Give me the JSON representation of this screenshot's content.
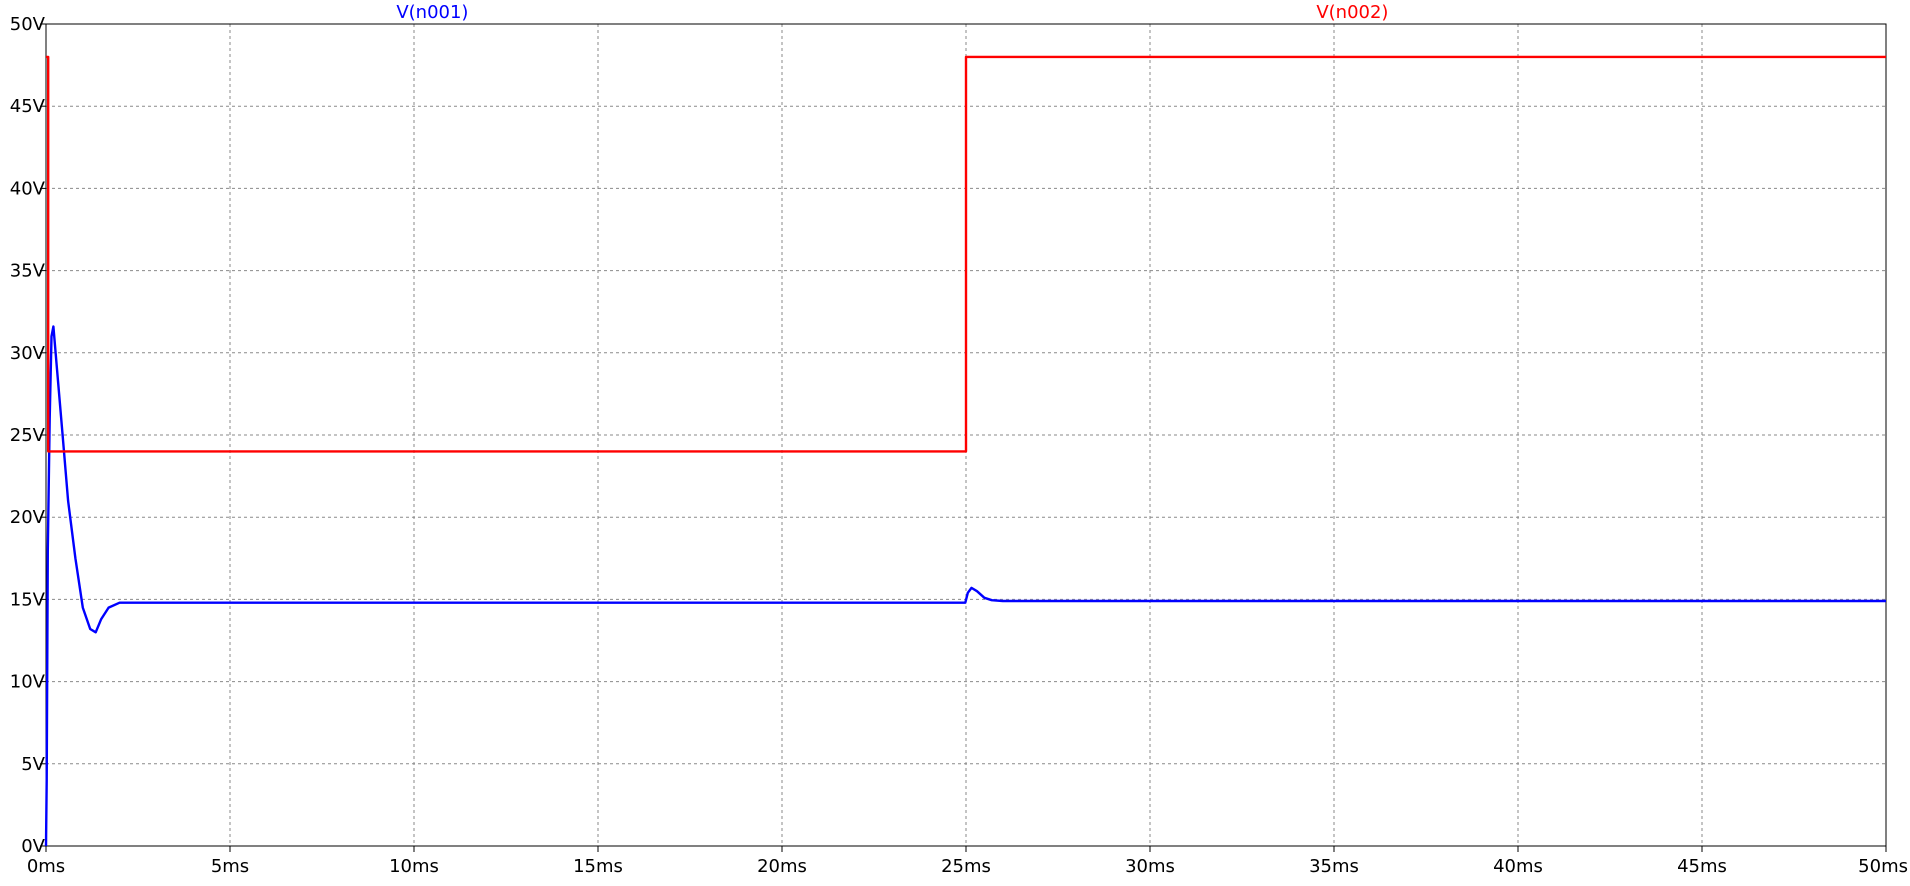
{
  "chart_data": {
    "type": "line",
    "title": "",
    "xlabel": "",
    "ylabel": "",
    "xlim": [
      0,
      50
    ],
    "ylim": [
      0,
      50
    ],
    "grid": true,
    "x_ticks": [
      0,
      5,
      10,
      15,
      20,
      25,
      30,
      35,
      40,
      45,
      50
    ],
    "x_tick_labels": [
      "0ms",
      "5ms",
      "10ms",
      "15ms",
      "20ms",
      "25ms",
      "30ms",
      "35ms",
      "40ms",
      "45ms",
      "50ms"
    ],
    "y_ticks": [
      0,
      5,
      10,
      15,
      20,
      25,
      30,
      35,
      40,
      45,
      50
    ],
    "y_tick_labels": [
      "0V",
      "5V",
      "10V",
      "15V",
      "20V",
      "25V",
      "30V",
      "35V",
      "40V",
      "45V",
      "50V"
    ],
    "series": [
      {
        "name": "V(n001)",
        "color": "#0000ff",
        "x": [
          0,
          0.02,
          0.05,
          0.1,
          0.15,
          0.2,
          0.3,
          0.45,
          0.6,
          0.8,
          1.0,
          1.2,
          1.35,
          1.5,
          1.7,
          2.0,
          2.5,
          5,
          10,
          15,
          20,
          24.98,
          25.05,
          25.15,
          25.3,
          25.5,
          25.7,
          26,
          30,
          35,
          40,
          45,
          50
        ],
        "y": [
          0,
          4,
          18,
          26,
          31,
          31.6,
          29,
          25,
          21,
          17.5,
          14.5,
          13.2,
          13.0,
          13.8,
          14.5,
          14.8,
          14.8,
          14.8,
          14.8,
          14.8,
          14.8,
          14.8,
          15.4,
          15.7,
          15.5,
          15.1,
          14.95,
          14.9,
          14.9,
          14.9,
          14.9,
          14.9,
          14.9
        ]
      },
      {
        "name": "V(n002)",
        "color": "#ff0000",
        "x": [
          0,
          0.06,
          0.06,
          25,
          25,
          50
        ],
        "y": [
          48,
          48,
          24,
          24,
          48,
          48
        ]
      }
    ]
  }
}
